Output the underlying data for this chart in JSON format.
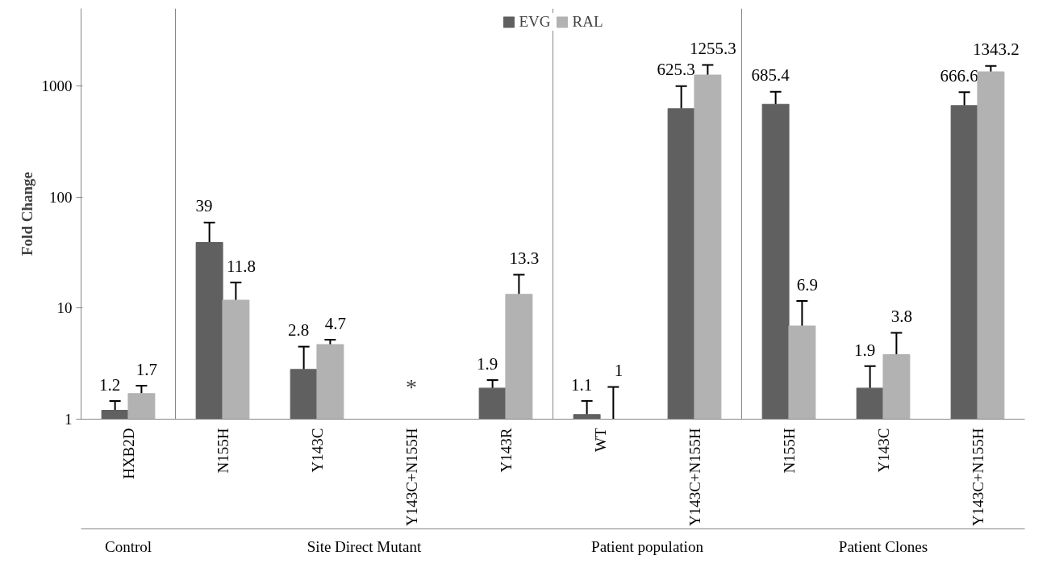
{
  "chart_data": {
    "type": "bar",
    "ylabel": "Fold Change",
    "log": "y",
    "categories": [
      "HXB2D",
      "N155H",
      "Y143C",
      "Y143C+N155H",
      "Y143R",
      "WT",
      "Y143C+N155H",
      "N155H",
      "Y143C",
      "Y143C+N155H"
    ],
    "series": [
      {
        "name": "EVG",
        "color": "#606060",
        "values": [
          1.2,
          39,
          2.8,
          null,
          1.9,
          1.1,
          625.3,
          685.4,
          1.9,
          666.6
        ],
        "errors": [
          [
            1.2,
            1.46
          ],
          [
            39,
            59
          ],
          [
            2.8,
            4.5
          ],
          null,
          [
            1.9,
            2.25
          ],
          [
            1.1,
            1.46
          ],
          [
            625.3,
            1000
          ],
          [
            685.4,
            890
          ],
          [
            1.9,
            3.0
          ],
          [
            666.6,
            880
          ]
        ]
      },
      {
        "name": "RAL",
        "color": "#b2b2b2",
        "values": [
          1.7,
          11.8,
          4.7,
          null,
          13.3,
          1,
          1255.3,
          6.9,
          3.8,
          1343.2
        ],
        "errors": [
          [
            1.7,
            2.0
          ],
          [
            11.8,
            17
          ],
          [
            4.7,
            5.2
          ],
          null,
          [
            13.3,
            20
          ],
          [
            1,
            1.95
          ],
          [
            1255.3,
            1550
          ],
          [
            6.9,
            11.6
          ],
          [
            3.8,
            6.0
          ],
          [
            1343.2,
            1520
          ]
        ]
      }
    ],
    "ylim": [
      1,
      5000
    ],
    "yticks": [
      1,
      10,
      100,
      1000
    ],
    "grid": false,
    "legend": "top",
    "data_labels": true,
    "annotations": [
      "*",
      "Control",
      "Site Direct Mutant",
      "Patient population",
      "Patient Clones"
    ]
  }
}
